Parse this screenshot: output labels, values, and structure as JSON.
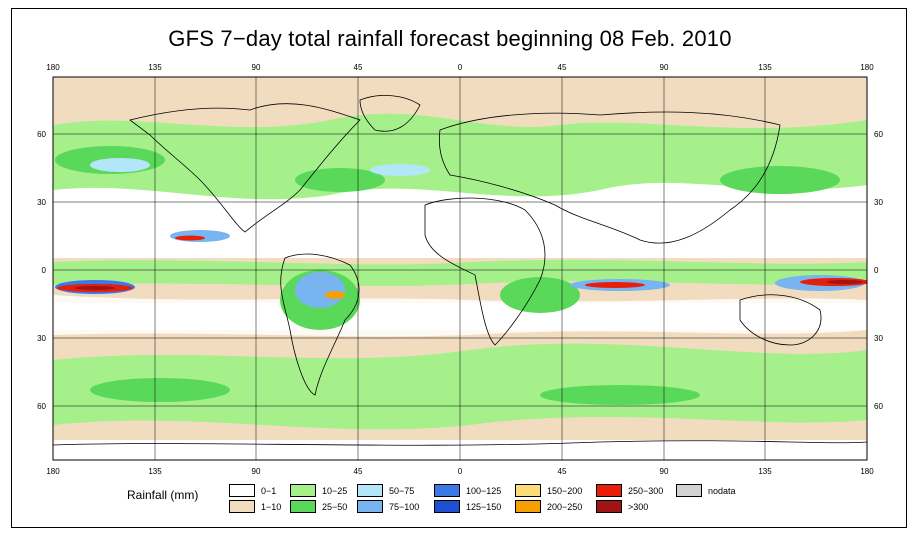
{
  "title": "GFS 7−day total rainfall forecast beginning 08 Feb. 2010",
  "map": {
    "lon_labels": [
      "180",
      "135",
      "90",
      "45",
      "0",
      "45",
      "90",
      "135",
      "180"
    ],
    "lat_labels": [
      "60",
      "30",
      "0",
      "30",
      "60"
    ],
    "lat_values": [
      60,
      30,
      0,
      -30,
      -60
    ]
  },
  "legend": {
    "title": "Rainfall (mm)",
    "items": [
      {
        "label": "0−1",
        "color": "#ffffff"
      },
      {
        "label": "1−10",
        "color": "#f2dcbf"
      },
      {
        "label": "10−25",
        "color": "#a6f08c"
      },
      {
        "label": "25−50",
        "color": "#5ad85a"
      },
      {
        "label": "50−75",
        "color": "#b4e6fa"
      },
      {
        "label": "75−100",
        "color": "#78b4f0"
      },
      {
        "label": "100−125",
        "color": "#3c78e6"
      },
      {
        "label": "125−150",
        "color": "#1e50d2"
      },
      {
        "label": "150−200",
        "color": "#fadc78"
      },
      {
        "label": "200−250",
        "color": "#f5a000"
      },
      {
        "label": "250−300",
        "color": "#e61e0a"
      },
      {
        "label": ">300",
        "color": "#a01414"
      },
      {
        "label": "nodata",
        "color": "#d2d2d2"
      }
    ]
  }
}
